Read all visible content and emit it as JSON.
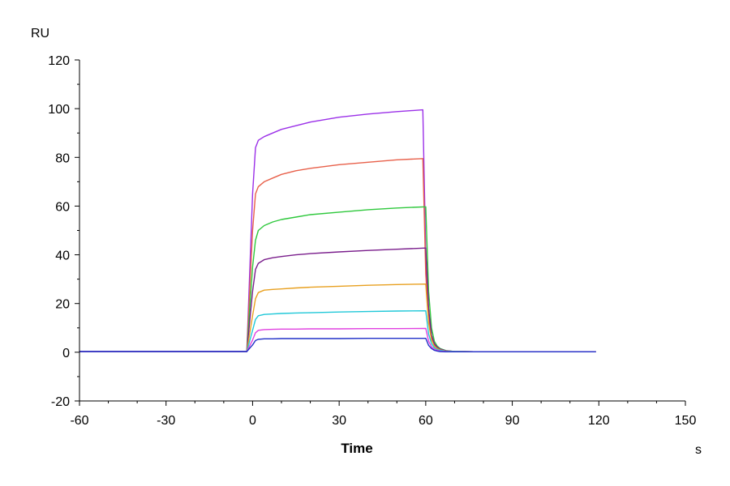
{
  "chart_data": {
    "type": "line",
    "title": "",
    "xlabel": "Time",
    "ylabel": "",
    "x_unit": "s",
    "y_unit": "RU",
    "xlim": [
      -60,
      150
    ],
    "ylim": [
      -20,
      120
    ],
    "x_ticks": [
      -60,
      -30,
      0,
      30,
      60,
      90,
      120,
      150
    ],
    "y_ticks": [
      -20,
      0,
      20,
      40,
      60,
      80,
      100,
      120
    ],
    "grid": false,
    "legend": "none",
    "series": [
      {
        "color": "#9b30e8",
        "x": [
          -60,
          -2,
          0,
          1,
          2,
          4,
          7,
          10,
          15,
          20,
          30,
          40,
          50,
          59,
          60,
          61,
          62,
          63,
          64,
          65,
          67,
          70,
          80,
          90,
          100,
          119
        ],
        "y": [
          0.3,
          0.3,
          65,
          84,
          87,
          88.5,
          90,
          91.5,
          93,
          94.5,
          96.5,
          97.8,
          98.8,
          99.5,
          40,
          16,
          7,
          3.5,
          2,
          1.2,
          0.6,
          0.3,
          0.2,
          0.2,
          0.2,
          0.2
        ]
      },
      {
        "color": "#e8604a",
        "x": [
          -60,
          -2,
          0,
          1,
          2,
          4,
          7,
          10,
          15,
          20,
          30,
          40,
          50,
          59,
          60,
          61,
          62,
          63,
          64,
          65,
          67,
          70,
          80,
          90,
          100,
          119
        ],
        "y": [
          0.3,
          0.3,
          50,
          65,
          68,
          70,
          71.5,
          73,
          74.5,
          75.5,
          77,
          78,
          79,
          79.5,
          32,
          13,
          6,
          3,
          1.8,
          1.1,
          0.5,
          0.3,
          0.2,
          0.2,
          0.2,
          0.2
        ]
      },
      {
        "color": "#2ec83c",
        "x": [
          -60,
          -2,
          0,
          1,
          2,
          4,
          7,
          10,
          15,
          20,
          30,
          40,
          50,
          60,
          61,
          62,
          63,
          64,
          65,
          67,
          70,
          80,
          90,
          100,
          119
        ],
        "y": [
          0.3,
          0.3,
          35,
          46,
          50,
          52,
          53.5,
          54.5,
          55.5,
          56.5,
          57.5,
          58.5,
          59.2,
          59.7,
          25,
          10,
          4.5,
          2.5,
          1.5,
          0.7,
          0.3,
          0.2,
          0.2,
          0.2,
          0.2
        ]
      },
      {
        "color": "#7a1e8c",
        "x": [
          -60,
          -2,
          0,
          1,
          2,
          4,
          7,
          10,
          15,
          20,
          30,
          40,
          50,
          60,
          61,
          62,
          63,
          64,
          65,
          67,
          70,
          80,
          90,
          100,
          119
        ],
        "y": [
          0.3,
          0.3,
          25,
          34,
          36.5,
          38,
          38.8,
          39.3,
          40,
          40.5,
          41.2,
          41.8,
          42.3,
          42.8,
          18,
          7,
          3.5,
          2,
          1.3,
          0.6,
          0.3,
          0.2,
          0.2,
          0.2,
          0.2
        ]
      },
      {
        "color": "#e8a020",
        "x": [
          -60,
          -2,
          0,
          1,
          2,
          4,
          7,
          10,
          15,
          20,
          30,
          40,
          50,
          60,
          61,
          62,
          63,
          64,
          65,
          67,
          70,
          80,
          90,
          100,
          119
        ],
        "y": [
          0.3,
          0.3,
          15,
          22,
          24.5,
          25.5,
          25.8,
          26,
          26.4,
          26.7,
          27.1,
          27.5,
          27.8,
          28,
          12,
          5,
          2.5,
          1.5,
          1,
          0.5,
          0.3,
          0.2,
          0.2,
          0.2,
          0.2
        ]
      },
      {
        "color": "#20c8d8",
        "x": [
          -60,
          -2,
          0,
          1,
          2,
          4,
          7,
          10,
          15,
          20,
          30,
          40,
          50,
          60,
          61,
          62,
          63,
          64,
          65,
          67,
          70,
          80,
          90,
          100,
          119
        ],
        "y": [
          0.3,
          0.3,
          9,
          13.5,
          15,
          15.5,
          15.7,
          15.9,
          16.1,
          16.2,
          16.5,
          16.7,
          16.9,
          17,
          7.5,
          3.5,
          1.8,
          1.1,
          0.8,
          0.4,
          0.3,
          0.2,
          0.2,
          0.2,
          0.2
        ]
      },
      {
        "color": "#e040e0",
        "x": [
          -60,
          -2,
          0,
          1,
          2,
          4,
          7,
          10,
          15,
          20,
          30,
          40,
          50,
          60,
          61,
          62,
          63,
          64,
          65,
          67,
          70,
          80,
          90,
          100,
          119
        ],
        "y": [
          0.3,
          0.3,
          5,
          8,
          9,
          9.3,
          9.4,
          9.5,
          9.5,
          9.6,
          9.6,
          9.7,
          9.7,
          9.8,
          4.5,
          2.2,
          1.2,
          0.8,
          0.5,
          0.3,
          0.2,
          0.2,
          0.2,
          0.2,
          0.2
        ]
      },
      {
        "color": "#2030c8",
        "x": [
          -60,
          -2,
          0,
          1,
          2,
          4,
          7,
          10,
          15,
          20,
          30,
          40,
          50,
          60,
          61,
          62,
          63,
          64,
          65,
          67,
          70,
          80,
          90,
          100,
          119
        ],
        "y": [
          0.3,
          0.3,
          3,
          4.8,
          5.3,
          5.5,
          5.5,
          5.6,
          5.6,
          5.6,
          5.6,
          5.7,
          5.7,
          5.7,
          2.8,
          1.5,
          0.8,
          0.5,
          0.3,
          0.2,
          0.2,
          0.2,
          0.2,
          0.2,
          0.2
        ]
      }
    ]
  }
}
